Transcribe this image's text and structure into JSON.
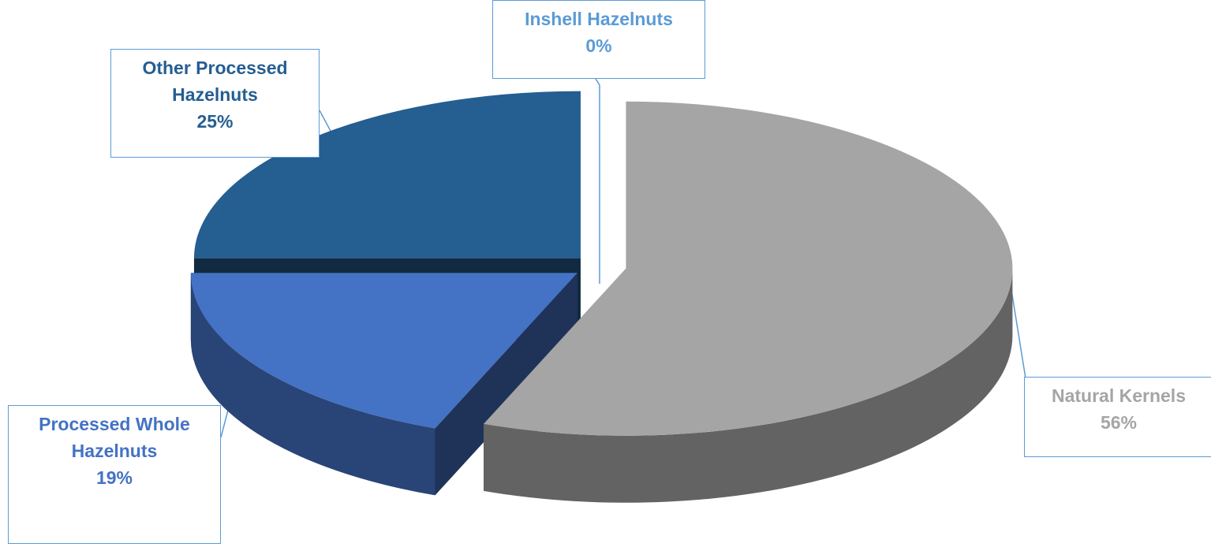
{
  "chart_data": {
    "type": "pie",
    "categories": [
      "Natural Kernels",
      "Processed Whole Hazelnuts",
      "Other Processed Hazelnuts",
      "Inshell Hazelnuts"
    ],
    "values": [
      56,
      19,
      25,
      0
    ],
    "value_labels": [
      "56%",
      "19%",
      "25%",
      "0%"
    ],
    "colors": [
      "#a5a5a5",
      "#4472c4",
      "#255e91",
      "#5b9bd5"
    ]
  }
}
